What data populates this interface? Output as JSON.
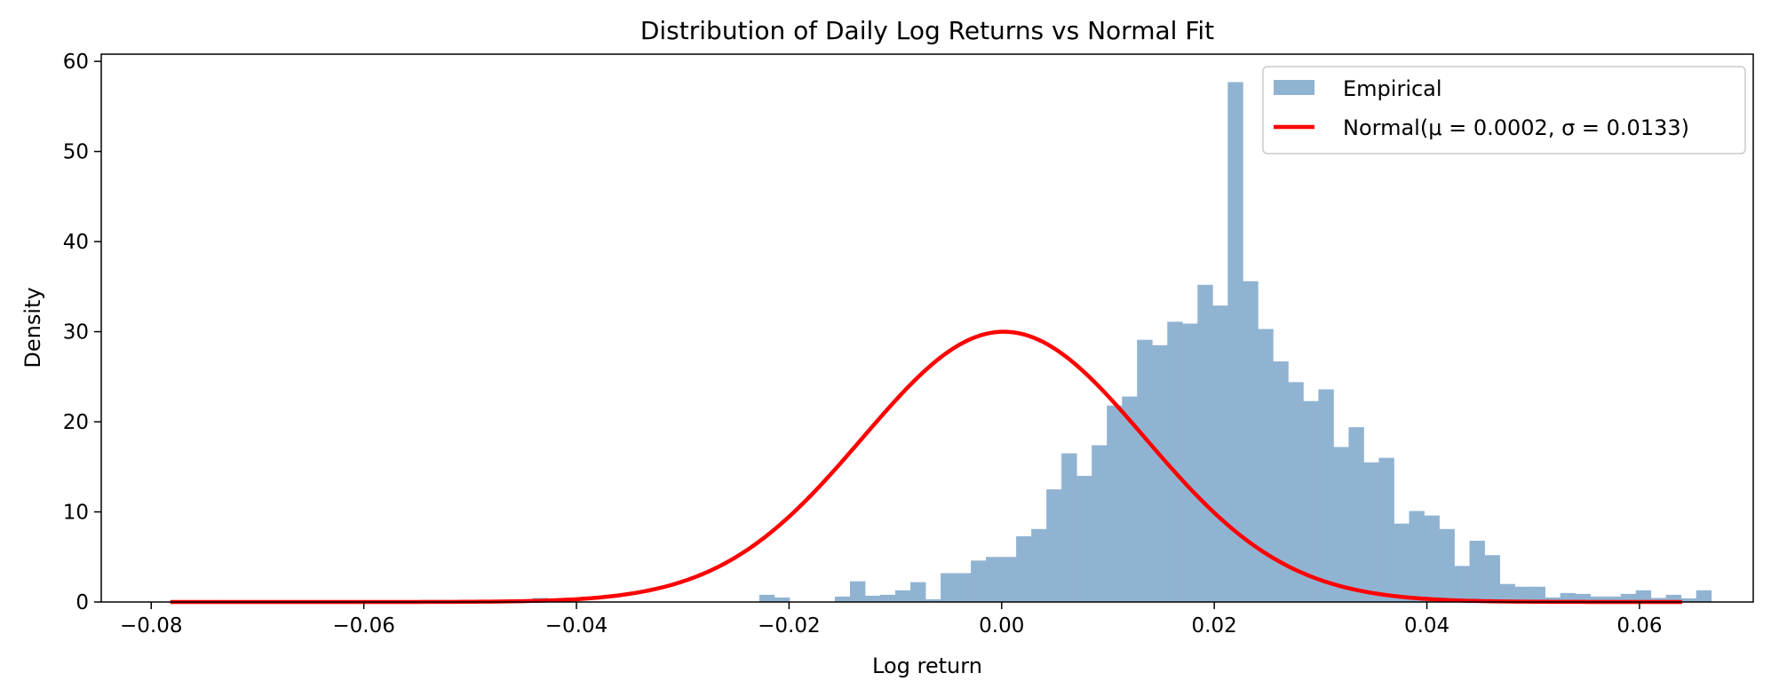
{
  "chart_data": {
    "type": "bar",
    "title": "Distribution of Daily Log Returns vs Normal Fit",
    "xlabel": "Log return",
    "ylabel": "Density",
    "xlim": [
      -0.0847,
      0.0707
    ],
    "ylim": [
      0,
      60.8
    ],
    "xticks": [
      -0.08,
      -0.06,
      -0.04,
      -0.02,
      0.0,
      0.02,
      0.04,
      0.06
    ],
    "xtick_labels": [
      "−0.08",
      "−0.06",
      "−0.04",
      "−0.02",
      "0.00",
      "0.02",
      "0.04",
      "0.06"
    ],
    "yticks": [
      0,
      10,
      20,
      30,
      40,
      50,
      60
    ],
    "ytick_labels": [
      "0",
      "10",
      "20",
      "30",
      "40",
      "50",
      "60"
    ],
    "grid": false,
    "legend_position": "top-right",
    "colors": {
      "histogram": "#91b3d2",
      "normal_fit": "#ff0000",
      "axes": "#000000"
    },
    "bin_start": -0.07824,
    "bin_width": 0.0014215,
    "densities": [
      0.2,
      0.2,
      0,
      0.2,
      0,
      0,
      0,
      0,
      0,
      0,
      0,
      0,
      0,
      0,
      0,
      0,
      0,
      0,
      0,
      0,
      0,
      0,
      0,
      0,
      0.45,
      0,
      0.45,
      0,
      0,
      0,
      0,
      0,
      0,
      0,
      0,
      0,
      0,
      0,
      0,
      0.8,
      0.5,
      0,
      0,
      0,
      0.6,
      2.3,
      0.7,
      0.8,
      1.3,
      2.2,
      0.3,
      3.2,
      3.2,
      4.6,
      5.0,
      5.0,
      7.3,
      8.1,
      12.5,
      16.5,
      14.0,
      17.4,
      21.8,
      22.8,
      29.1,
      28.5,
      31.1,
      30.9,
      35.2,
      32.9,
      57.7,
      35.6,
      30.3,
      26.7,
      24.4,
      22.3,
      23.6,
      17.2,
      19.4,
      15.5,
      16.0,
      8.7,
      10.1,
      9.6,
      8.1,
      4.0,
      6.8,
      5.2,
      2.0,
      1.7,
      1.7,
      0.5,
      1.0,
      0.9,
      0.6,
      0.6,
      0.9,
      1.3,
      0.45,
      0.8,
      0.4,
      1.3,
      0,
      0,
      0,
      0,
      0.45,
      0.2,
      0.45,
      0,
      0,
      0,
      0,
      0,
      0
    ],
    "normal_fit": {
      "mu": 0.0002,
      "sigma": 0.0133,
      "x_range": [
        -0.0782,
        0.064
      ]
    },
    "legend": [
      {
        "label": "Empirical",
        "kind": "patch"
      },
      {
        "label": "Normal(μ = 0.0002, σ = 0.0133)",
        "kind": "line"
      }
    ]
  }
}
